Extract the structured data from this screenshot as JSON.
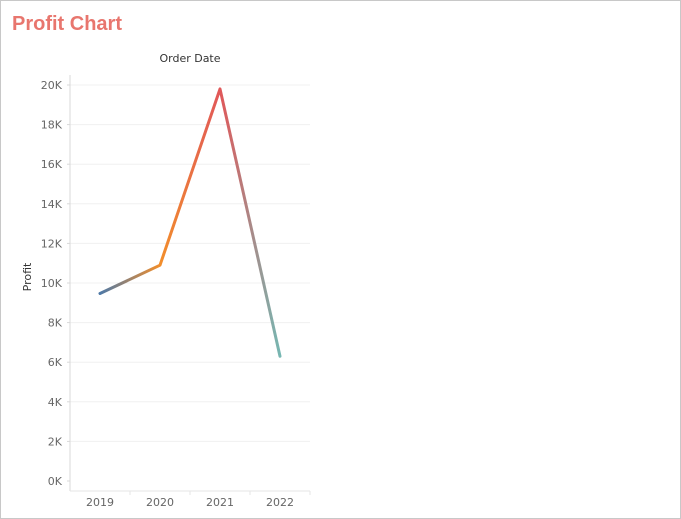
{
  "sheet": {
    "title": "Profit Chart"
  },
  "chart_data": {
    "type": "line",
    "title": "",
    "column_header": "Order Date",
    "xlabel": "",
    "ylabel": "Profit",
    "x": [
      "2019",
      "2020",
      "2021",
      "2022"
    ],
    "series": [
      {
        "values": [
          9470,
          10900,
          19800,
          6300
        ]
      }
    ],
    "ylim": [
      0,
      20000
    ],
    "y_ticks": [
      0,
      2000,
      4000,
      6000,
      8000,
      10000,
      12000,
      14000,
      16000,
      18000,
      20000
    ],
    "y_tick_labels": [
      "0K",
      "2K",
      "4K",
      "6K",
      "8K",
      "10K",
      "12K",
      "14K",
      "16K",
      "18K",
      "20K"
    ],
    "grid": true,
    "legend": "none",
    "line_color_gradient": [
      "#4e79a7",
      "#f28e2b",
      "#e15759",
      "#76b7b2"
    ]
  }
}
